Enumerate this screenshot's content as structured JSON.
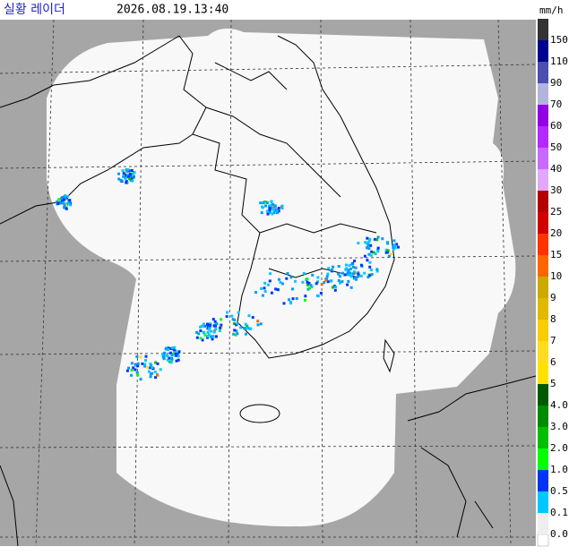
{
  "header": {
    "title": "실황 레이더",
    "timestamp": "2026.08.19.13:40"
  },
  "legend": {
    "unit": "mm/h",
    "items": [
      {
        "label": "150",
        "color": "#333333"
      },
      {
        "label": "110",
        "color": "#000390"
      },
      {
        "label": "90",
        "color": "#4c4eb1"
      },
      {
        "label": "70",
        "color": "#b3b4de"
      },
      {
        "label": "60",
        "color": "#9300e4"
      },
      {
        "label": "50",
        "color": "#b329ff"
      },
      {
        "label": "40",
        "color": "#c969ff"
      },
      {
        "label": "30",
        "color": "#e0a9ff"
      },
      {
        "label": "25",
        "color": "#b40000"
      },
      {
        "label": "20",
        "color": "#d20000"
      },
      {
        "label": "15",
        "color": "#ff3200"
      },
      {
        "label": "10",
        "color": "#ff6600"
      },
      {
        "label": "9",
        "color": "#ccaa00"
      },
      {
        "label": "8",
        "color": "#e0b900"
      },
      {
        "label": "7",
        "color": "#f9cd00"
      },
      {
        "label": "6",
        "color": "#ffdc1f"
      },
      {
        "label": "5",
        "color": "#ffe100"
      },
      {
        "label": "4.0",
        "color": "#005a00"
      },
      {
        "label": "3.0",
        "color": "#008c00"
      },
      {
        "label": "2.0",
        "color": "#00be00"
      },
      {
        "label": "1.0",
        "color": "#00ff00"
      },
      {
        "label": "0.5",
        "color": "#0033f5"
      },
      {
        "label": "0.1",
        "color": "#00c8ff"
      },
      {
        "label": "0.0",
        "color": "#eeeeee"
      }
    ]
  }
}
